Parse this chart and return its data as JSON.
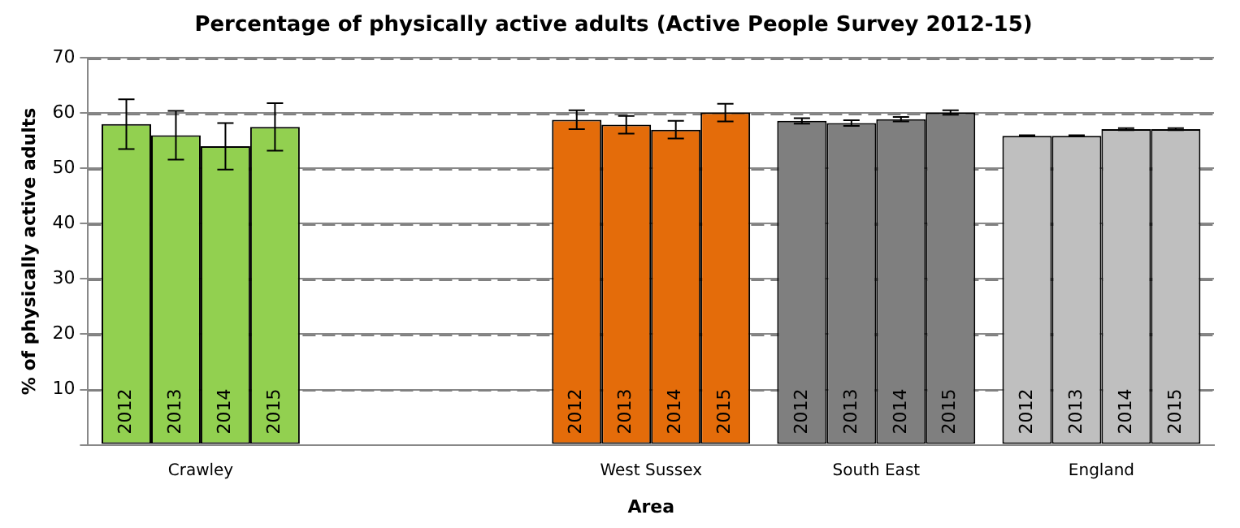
{
  "chart_data": {
    "type": "bar",
    "title": "Percentage of physically active adults (Active People Survey 2012-15)",
    "xlabel": "Area",
    "ylabel": "% of physically active adults",
    "categories": [
      "Crawley",
      null,
      "West Sussex",
      "South East",
      "England"
    ],
    "series": [
      {
        "name": "2012",
        "colors": [
          "#92d050",
          null,
          "#e46c0a",
          "#7f7f7f",
          "#bfbfbf"
        ],
        "values": [
          58,
          null,
          58.8,
          58.6,
          55.9
        ],
        "errors": [
          4.5,
          null,
          1.7,
          0.5,
          0.1
        ]
      },
      {
        "name": "2013",
        "colors": [
          "#92d050",
          null,
          "#e46c0a",
          "#7f7f7f",
          "#bfbfbf"
        ],
        "values": [
          56,
          null,
          57.9,
          58.2,
          55.9
        ],
        "errors": [
          4.4,
          null,
          1.6,
          0.5,
          0.1
        ]
      },
      {
        "name": "2014",
        "colors": [
          "#92d050",
          null,
          "#e46c0a",
          "#7f7f7f",
          "#bfbfbf"
        ],
        "values": [
          54,
          null,
          57,
          58.9,
          57.1
        ],
        "errors": [
          4.2,
          null,
          1.6,
          0.4,
          0.2
        ]
      },
      {
        "name": "2015",
        "colors": [
          "#92d050",
          null,
          "#e46c0a",
          "#7f7f7f",
          "#bfbfbf"
        ],
        "values": [
          57.5,
          null,
          60.1,
          60.1,
          57.1
        ],
        "errors": [
          4.3,
          null,
          1.6,
          0.4,
          0.2
        ]
      }
    ],
    "ylim": [
      0,
      70
    ],
    "yticks": [
      {
        "value": 0,
        "label": null
      },
      10,
      20,
      30,
      40,
      50,
      60,
      70
    ],
    "grid": "y",
    "legend": false
  }
}
